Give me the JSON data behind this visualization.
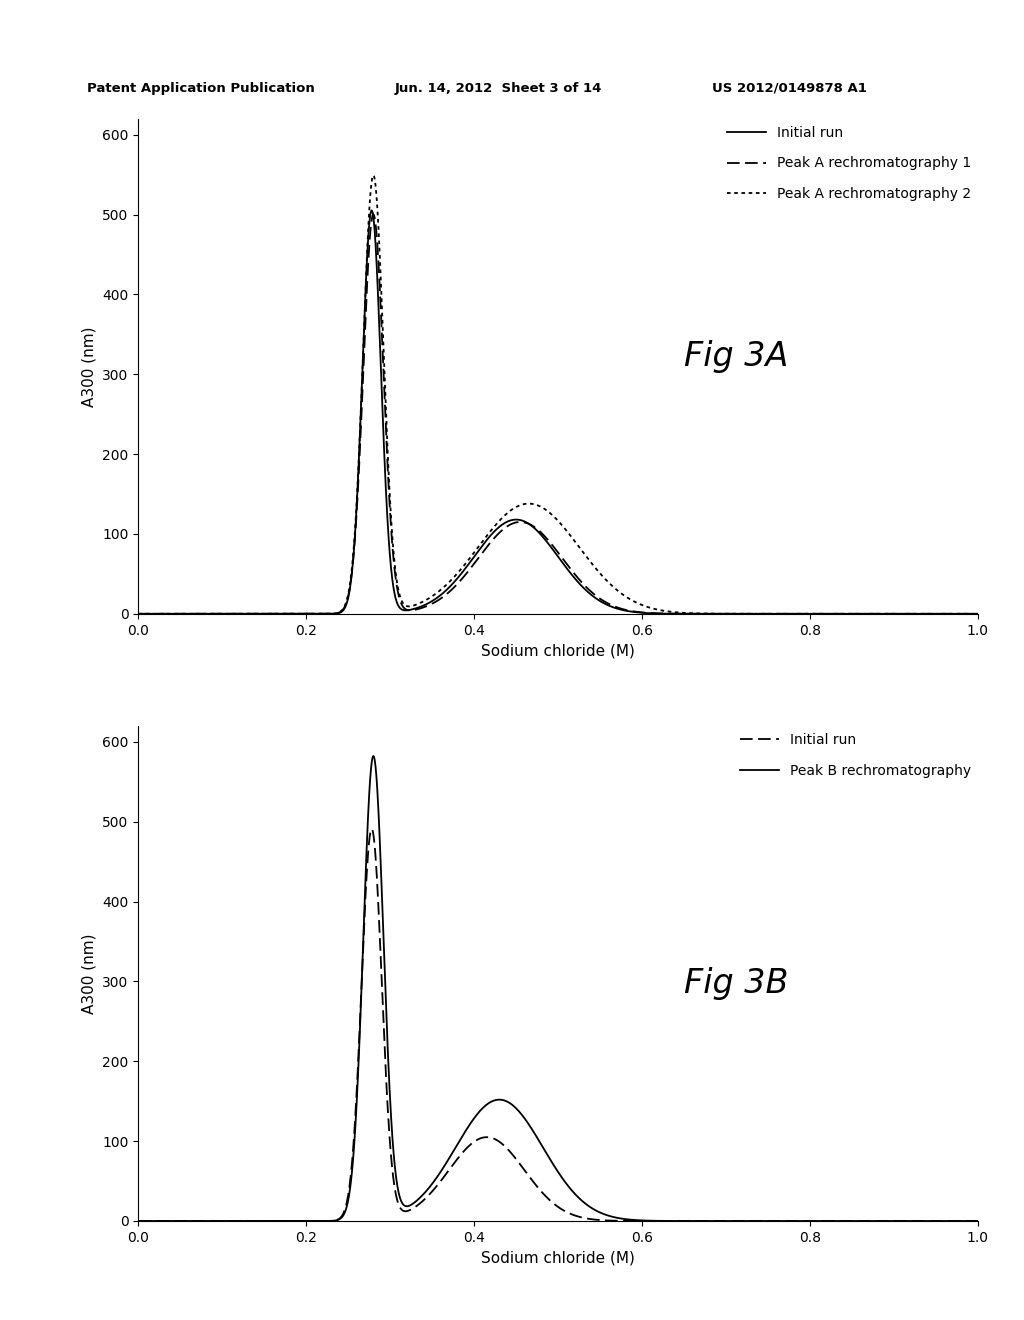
{
  "header_left": "Patent Application Publication",
  "header_mid": "Jun. 14, 2012  Sheet 3 of 14",
  "header_right": "US 2012/0149878 A1",
  "fig3a": {
    "title": "Fig 3A",
    "xlabel": "Sodium chloride (M)",
    "ylabel": "A300 (nm)",
    "xlim": [
      0.0,
      1.0
    ],
    "ylim": [
      0,
      620
    ],
    "yticks": [
      0,
      100,
      200,
      300,
      400,
      500,
      600
    ],
    "xticks": [
      0.0,
      0.2,
      0.4,
      0.6,
      0.8,
      1.0
    ],
    "legend": [
      "Initial run",
      "Peak A rechromatography 1",
      "Peak A rechromatography 2"
    ],
    "line_styles": [
      "solid",
      "dashed",
      "dotted"
    ],
    "line_colors": [
      "#000000",
      "#000000",
      "#000000"
    ]
  },
  "fig3b": {
    "title": "Fig 3B",
    "xlabel": "Sodium chloride (M)",
    "ylabel": "A300 (nm)",
    "xlim": [
      0.0,
      1.0
    ],
    "ylim": [
      0,
      620
    ],
    "yticks": [
      0,
      100,
      200,
      300,
      400,
      500,
      600
    ],
    "xticks": [
      0.0,
      0.2,
      0.4,
      0.6,
      0.8,
      1.0
    ],
    "legend": [
      "Initial run",
      "Peak B rechromatography"
    ],
    "line_styles": [
      "dashed",
      "solid"
    ],
    "line_colors": [
      "#000000",
      "#000000"
    ]
  },
  "background_color": "#ffffff"
}
